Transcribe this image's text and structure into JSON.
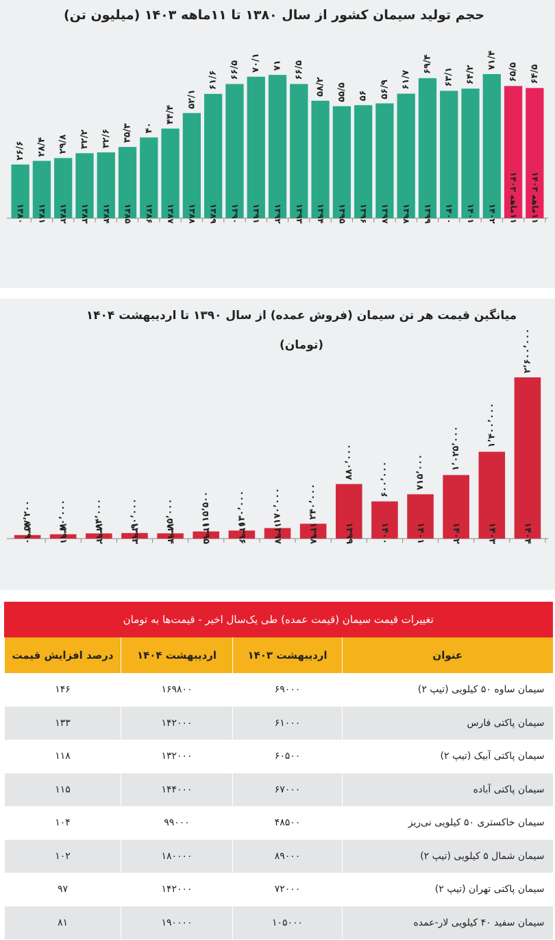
{
  "chart_data": [
    {
      "type": "bar",
      "title": "حجم تولید سیمان کشور از سال ۱۳۸۰ تا ۱۱ماهه ۱۴۰۳ (میلیون تن)",
      "categories": [
        "۱۳۸۰",
        "۱۳۸۱",
        "۱۳۸۲",
        "۱۳۸۳",
        "۱۳۸۴",
        "۱۳۸۵",
        "۱۳۸۶",
        "۱۳۸۷",
        "۱۳۸۸",
        "۱۳۸۹",
        "۱۳۹۰",
        "۱۳۹۱",
        "۱۳۹۲",
        "۱۳۹۳",
        "۱۳۹۴",
        "۱۳۹۵",
        "۱۳۹۶",
        "۱۳۹۷",
        "۱۳۹۸",
        "۱۳۹۹",
        "۱۴۰۰",
        "۱۴۰۱",
        "۱۴۰۲",
        "۱۱ماهه ۱۴۰۲",
        "۱۱ماهه ۱۴۰۳"
      ],
      "values": [
        26.6,
        28.4,
        29.8,
        32.2,
        32.6,
        35.3,
        40,
        44.4,
        52.1,
        61.6,
        66.5,
        70.1,
        71,
        66.5,
        58.2,
        55.5,
        56,
        56.9,
        61.7,
        69.4,
        63.1,
        64.2,
        71.4,
        65.5,
        64.5
      ],
      "value_labels": [
        "۲۶/۶",
        "۲۸/۴",
        "۲۹/۸",
        "۳۲/۲",
        "۳۲/۶",
        "۳۵/۳",
        "۴۰",
        "۴۴/۴",
        "۵۲/۱",
        "۶۱/۶",
        "۶۶/۵",
        "۷۰/۱",
        "۷۱",
        "۶۶/۵",
        "۵۸/۲",
        "۵۵/۵",
        "۵۶",
        "۵۶/۹",
        "۶۱/۷",
        "۶۹/۴",
        "۶۳/۱",
        "۶۴/۲",
        "۷۱/۴",
        "۶۵/۵",
        "۶۴/۵"
      ],
      "colors": [
        "#2aa887",
        "#2aa887",
        "#2aa887",
        "#2aa887",
        "#2aa887",
        "#2aa887",
        "#2aa887",
        "#2aa887",
        "#2aa887",
        "#2aa887",
        "#2aa887",
        "#2aa887",
        "#2aa887",
        "#2aa887",
        "#2aa887",
        "#2aa887",
        "#2aa887",
        "#2aa887",
        "#2aa887",
        "#2aa887",
        "#2aa887",
        "#2aa887",
        "#2aa887",
        "#e6245a",
        "#e6245a"
      ]
    },
    {
      "type": "bar",
      "title": "میانگین قیمت هر تن سیمان (فروش عمده) از سال ۱۳۹۰ تا اردیبهشت ۱۴۰۴",
      "subtitle": "(تومان)",
      "categories": [
        "۱۳۹۰",
        "۱۳۹۱",
        "۱۳۹۲",
        "۱۳۹۳",
        "۱۳۹۴",
        "۱۳۹۵",
        "۱۳۹۶",
        "۱۳۹۷",
        "۱۳۹۸",
        "۱۳۹۹",
        "۱۴۰۰",
        "۱۴۰۱",
        "۱۴۰۲",
        "۱۴۰۳",
        "۱۴۰۴"
      ],
      "values": [
        57200,
        70000,
        84000,
        90000,
        85000,
        115500,
        130000,
        170000,
        240000,
        880000,
        600000,
        715000,
        1025000,
        1400000,
        2600000
      ],
      "value_labels": [
        "۵۷٬۲۰۰",
        "۷۰٬۰۰۰",
        "۸۴٬۰۰۰",
        "۹۰٬۰۰۰",
        "۸۵٬۰۰۰",
        "۱۱۵٬۵۰۰",
        "۱۳۰٬۰۰۰",
        "۱۷۰٬۰۰۰",
        "۲۴۰٬۰۰۰",
        "۸۸۰٬۰۰۰",
        "۶۰۰٬۰۰۰",
        "۷۱۵٬۰۰۰",
        "۱٬۰۲۵٬۰۰۰",
        "۱٬۴۰۰٬۰۰۰",
        "۲٬۶۰۰٬۰۰۰"
      ],
      "color": "#d3283b"
    }
  ],
  "table": {
    "title": "تغییرات قیمت سیمان (قیمت عمده) طی یک‌سال اخیر - قیمت‌ها به تومان",
    "columns": [
      "عنوان",
      "اردیبهشت ۱۴۰۳",
      "اردیبهشت ۱۴۰۴",
      "درصد افزایش قیمت"
    ],
    "rows": [
      [
        "سیمان ساوه ۵۰ کیلویی (تیپ ۲)",
        "۶۹۰۰۰",
        "۱۶۹۸۰۰",
        "۱۴۶"
      ],
      [
        "سیمان پاکتی فارس",
        "۶۱۰۰۰",
        "۱۴۲۰۰۰",
        "۱۳۳"
      ],
      [
        "سیمان پاکتی آبیک (تیپ ۲)",
        "۶۰۵۰۰",
        "۱۳۲۰۰۰",
        "۱۱۸"
      ],
      [
        "سیمان پاکتی آباده",
        "۶۷۰۰۰",
        "۱۴۴۰۰۰",
        "۱۱۵"
      ],
      [
        "سیمان خاکستری ۵۰ کیلویی نی‌ریز",
        "۴۸۵۰۰",
        "۹۹۰۰۰",
        "۱۰۴"
      ],
      [
        "سیمان شمال ۵ کیلویی (تیپ ۲)",
        "۸۹۰۰۰",
        "۱۸۰۰۰۰",
        "۱۰۲"
      ],
      [
        "سیمان پاکتی تهران (تیپ ۲)",
        "۷۲۰۰۰",
        "۱۴۲۰۰۰",
        "۹۷"
      ],
      [
        "سیمان سفید ۴۰ کیلویی لار-عمده",
        "۱۰۵۰۰۰",
        "۱۹۰۰۰۰",
        "۸۱"
      ]
    ]
  }
}
